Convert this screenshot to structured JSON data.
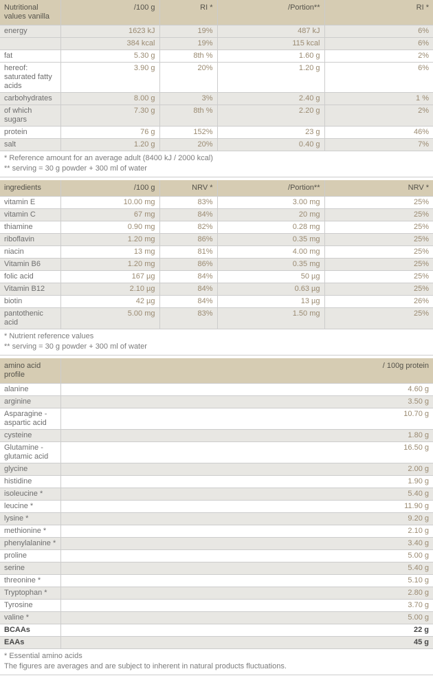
{
  "colors": {
    "header_bg": "#d6ccb3",
    "header_text": "#54524a",
    "row_bg": "#ffffff",
    "row_alt_bg": "#e8e7e3",
    "label_text": "#6e6e6e",
    "value_text": "#9a8a71",
    "bold_text": "#474747",
    "footnote_text": "#7b7b7b",
    "border": "#cccccc"
  },
  "nutrition_table": {
    "header": {
      "label": "Nutritional values vanilla",
      "col_per100": "/100 g",
      "col_ri": "RI *",
      "col_portion": "/Portion**",
      "col_ri2": "RI *"
    },
    "rows": [
      {
        "label": "energy",
        "per100": "1623 kJ",
        "ri": "19%",
        "portion": "487 kJ",
        "ri2": "6%",
        "shade": true
      },
      {
        "label": "",
        "per100": "384 kcal",
        "ri": "19%",
        "portion": "115 kcal",
        "ri2": "6%",
        "shade": true
      },
      {
        "label": "fat",
        "per100": "5.30 g",
        "ri": "8th %",
        "portion": "1.60 g",
        "ri2": "2%",
        "shade": false
      },
      {
        "label": "hereof: saturated fatty acids",
        "per100": "3.90 g",
        "ri": "20%",
        "portion": "1.20 g",
        "ri2": "6%",
        "shade": false
      },
      {
        "label": "carbohydrates",
        "per100": "8.00 g",
        "ri": "3%",
        "portion": "2.40 g",
        "ri2": "1 %",
        "shade": true
      },
      {
        "label": "of which sugars",
        "per100": "7.30 g",
        "ri": "8th %",
        "portion": "2.20 g",
        "ri2": "2%",
        "shade": true
      },
      {
        "label": "protein",
        "per100": "76 g",
        "ri": "152%",
        "portion": "23 g",
        "ri2": "46%",
        "shade": false
      },
      {
        "label": "salt",
        "per100": "1.20 g",
        "ri": "20%",
        "portion": "0.40 g",
        "ri2": "7%",
        "shade": true
      }
    ],
    "footnotes": [
      "* Reference amount for an average adult (8400 kJ / 2000 kcal)",
      "** serving = 30 g powder + 300 ml of water"
    ]
  },
  "ingredients_table": {
    "header": {
      "label": "ingredients",
      "col_per100": "/100 g",
      "col_nrv": "NRV *",
      "col_portion": "/Portion**",
      "col_nrv2": "NRV *"
    },
    "rows": [
      {
        "label": "vitamin E",
        "per100": "10.00 mg",
        "ri": "83%",
        "portion": "3.00 mg",
        "ri2": "25%",
        "shade": false
      },
      {
        "label": "vitamin C",
        "per100": "67 mg",
        "ri": "84%",
        "portion": "20 mg",
        "ri2": "25%",
        "shade": true
      },
      {
        "label": "thiamine",
        "per100": "0.90 mg",
        "ri": "82%",
        "portion": "0.28 mg",
        "ri2": "25%",
        "shade": false
      },
      {
        "label": "riboflavin",
        "per100": "1.20 mg",
        "ri": "86%",
        "portion": "0.35 mg",
        "ri2": "25%",
        "shade": true
      },
      {
        "label": "niacin",
        "per100": "13 mg",
        "ri": "81%",
        "portion": "4.00 mg",
        "ri2": "25%",
        "shade": false
      },
      {
        "label": "Vitamin B6",
        "per100": "1.20 mg",
        "ri": "86%",
        "portion": "0.35 mg",
        "ri2": "25%",
        "shade": true
      },
      {
        "label": "folic acid",
        "per100": "167 µg",
        "ri": "84%",
        "portion": "50 µg",
        "ri2": "25%",
        "shade": false
      },
      {
        "label": "Vitamin B12",
        "per100": "2.10 µg",
        "ri": "84%",
        "portion": "0.63 µg",
        "ri2": "25%",
        "shade": true
      },
      {
        "label": "biotin",
        "per100": "42 µg",
        "ri": "84%",
        "portion": "13 µg",
        "ri2": "26%",
        "shade": false
      },
      {
        "label": "pantothenic acid",
        "per100": "5.00 mg",
        "ri": "83%",
        "portion": "1.50 mg",
        "ri2": "25%",
        "shade": true
      }
    ],
    "footnotes": [
      "* Nutrient reference values",
      "** serving = 30 g powder + 300 ml of water"
    ]
  },
  "amino_table": {
    "header": {
      "label": "amino acid profile",
      "col_value": "/ 100g protein"
    },
    "rows": [
      {
        "label": "alanine",
        "value": "4.60 g",
        "shade": false
      },
      {
        "label": "arginine",
        "value": "3.50 g",
        "shade": true
      },
      {
        "label": "Asparagine - aspartic acid",
        "value": "10.70 g",
        "shade": false
      },
      {
        "label": "cysteine",
        "value": "1.80 g",
        "shade": true
      },
      {
        "label": "Glutamine - glutamic acid",
        "value": "16.50 g",
        "shade": false
      },
      {
        "label": "glycine",
        "value": "2.00 g",
        "shade": true
      },
      {
        "label": "histidine",
        "value": "1.90 g",
        "shade": false
      },
      {
        "label": "isoleucine *",
        "value": "5.40 g",
        "shade": true
      },
      {
        "label": "leucine *",
        "value": "11.90 g",
        "shade": false
      },
      {
        "label": "lysine *",
        "value": "9.20 g",
        "shade": true
      },
      {
        "label": "methionine *",
        "value": "2.10 g",
        "shade": false
      },
      {
        "label": "phenylalanine *",
        "value": "3.40 g",
        "shade": true
      },
      {
        "label": "proline",
        "value": "5.00 g",
        "shade": false
      },
      {
        "label": "serine",
        "value": "5.40 g",
        "shade": true
      },
      {
        "label": "threonine *",
        "value": "5.10 g",
        "shade": false
      },
      {
        "label": "Tryptophan *",
        "value": "2.80 g",
        "shade": true
      },
      {
        "label": "Tyrosine",
        "value": "3.70 g",
        "shade": false
      },
      {
        "label": "valine *",
        "value": "5.00 g",
        "shade": true
      },
      {
        "label": "BCAAs",
        "value": "22 g",
        "shade": false,
        "bold": true
      },
      {
        "label": "EAAs",
        "value": "45 g",
        "shade": true,
        "bold": true
      }
    ],
    "footnotes": [
      "* Essential amino acids",
      "The figures are averages and are subject to inherent in natural products fluctuations."
    ]
  }
}
